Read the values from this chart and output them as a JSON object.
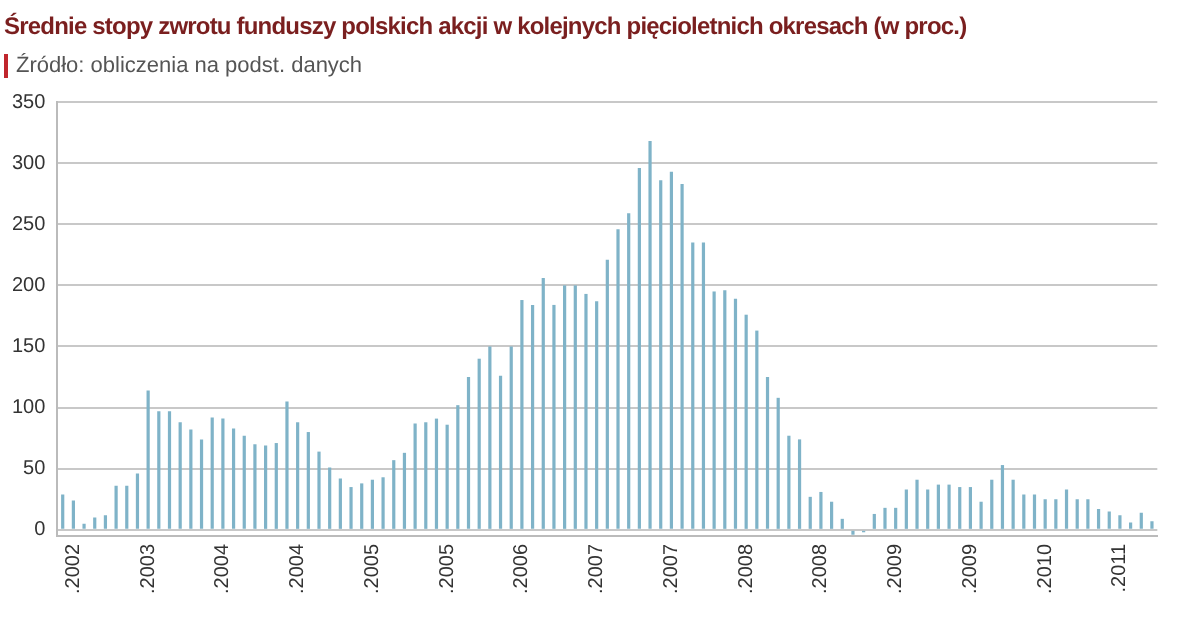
{
  "chart_data": {
    "type": "bar",
    "title": "Średnie stopy zwrotu funduszy polskich akcji w kolejnych pięcioletnich okresach (w proc.)",
    "subtitle": "Źródło: obliczenia na podst. danych",
    "categories": [
      null,
      ".2002",
      null,
      null,
      null,
      null,
      null,
      null,
      ".2003",
      null,
      null,
      null,
      null,
      null,
      null,
      ".2004",
      null,
      null,
      null,
      null,
      null,
      null,
      ".2004",
      null,
      null,
      null,
      null,
      null,
      null,
      ".2005",
      null,
      null,
      null,
      null,
      null,
      null,
      ".2005",
      null,
      null,
      null,
      null,
      null,
      null,
      ".2006",
      null,
      null,
      null,
      null,
      null,
      null,
      ".2007",
      null,
      null,
      null,
      null,
      null,
      null,
      ".2007",
      null,
      null,
      null,
      null,
      null,
      null,
      ".2008",
      null,
      null,
      null,
      null,
      null,
      null,
      ".2008",
      null,
      null,
      null,
      null,
      null,
      null,
      ".2009",
      null,
      null,
      null,
      null,
      null,
      null,
      ".2009",
      null,
      null,
      null,
      null,
      null,
      null,
      ".2010",
      null,
      null,
      null,
      null,
      null,
      null,
      ".2011",
      null,
      null,
      null
    ],
    "values": [
      29,
      24,
      5,
      10,
      12,
      36,
      36,
      46,
      114,
      97,
      97,
      88,
      82,
      74,
      92,
      91,
      83,
      77,
      70,
      69,
      71,
      105,
      88,
      80,
      64,
      51,
      42,
      35,
      38,
      41,
      43,
      57,
      63,
      87,
      88,
      91,
      86,
      102,
      125,
      140,
      150,
      126,
      150,
      188,
      184,
      206,
      184,
      200,
      200,
      193,
      187,
      221,
      246,
      259,
      296,
      318,
      286,
      293,
      283,
      235,
      235,
      195,
      196,
      189,
      176,
      163,
      125,
      108,
      77,
      74,
      27,
      31,
      23,
      9,
      -4,
      -2,
      13,
      18,
      18,
      33,
      41,
      33,
      37,
      37,
      35,
      35,
      23,
      41,
      53,
      41,
      29,
      29,
      25,
      25,
      33,
      25,
      25,
      17,
      15,
      12,
      6,
      14,
      7
    ],
    "color": "#7fb3c8",
    "ylim": [
      -5,
      350
    ],
    "yticks": [
      0,
      50,
      100,
      150,
      200,
      250,
      300,
      350
    ],
    "grid": "y"
  }
}
